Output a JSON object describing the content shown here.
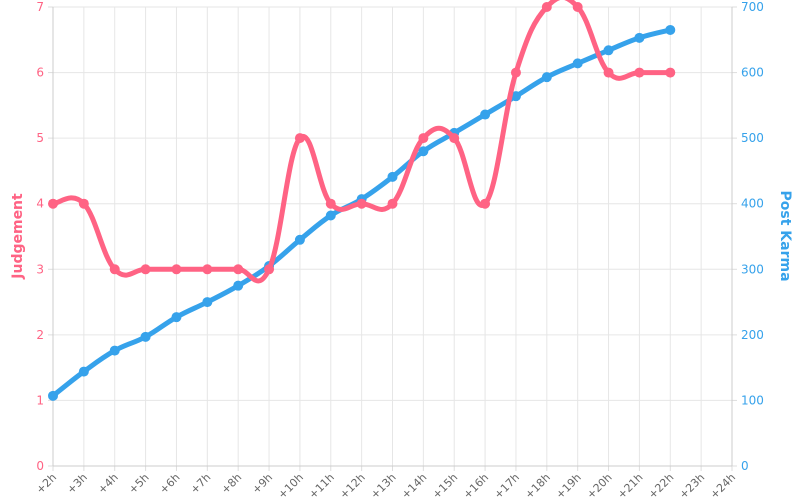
{
  "chart_data": {
    "type": "line",
    "categories": [
      "+2h",
      "+3h",
      "+4h",
      "+5h",
      "+6h",
      "+7h",
      "+8h",
      "+9h",
      "+10h",
      "+11h",
      "+12h",
      "+13h",
      "+14h",
      "+15h",
      "+16h",
      "+17h",
      "+18h",
      "+19h",
      "+20h",
      "+21h",
      "+22h",
      "+23h",
      "+24h"
    ],
    "series": [
      {
        "name": "Judgement",
        "axis": "left",
        "color": "#ff6384",
        "values": [
          4,
          4,
          3,
          3,
          3,
          3,
          3,
          3,
          5,
          4,
          4,
          4,
          5,
          5,
          4,
          6,
          7,
          7,
          6,
          6,
          6,
          null,
          null
        ]
      },
      {
        "name": "Post Karma",
        "axis": "right",
        "color": "#36a2eb",
        "values": [
          107,
          144,
          176,
          197,
          227,
          250,
          275,
          305,
          345,
          382,
          407,
          441,
          480,
          508,
          536,
          564,
          593,
          614,
          634,
          653,
          665,
          null,
          null
        ]
      }
    ],
    "y_left": {
      "label": "Judgement",
      "range": [
        0,
        7
      ],
      "ticks": [
        "0",
        "1",
        "2",
        "3",
        "4",
        "5",
        "6",
        "7"
      ]
    },
    "y_right": {
      "label": "Post Karma",
      "range": [
        0,
        700
      ],
      "ticks": [
        "0",
        "100",
        "200",
        "300",
        "400",
        "500",
        "600",
        "700"
      ]
    },
    "grid": true,
    "legend": "none"
  }
}
